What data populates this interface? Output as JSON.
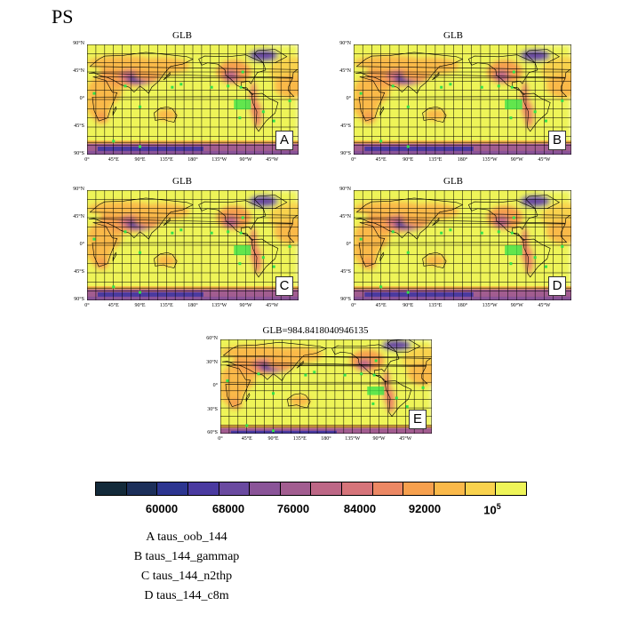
{
  "page_title": "PS",
  "panels": [
    {
      "title": "GLB",
      "letter": "A",
      "ylabels": [
        "90°N",
        "45°N",
        "0°",
        "45°S",
        "90°S"
      ],
      "xlabels": [
        "0°",
        "45°E",
        "90°E",
        "135°E",
        "180°",
        "135°W",
        "90°W",
        "45°W"
      ]
    },
    {
      "title": "GLB",
      "letter": "B",
      "ylabels": [
        "90°N",
        "45°N",
        "0°",
        "45°S",
        "90°S"
      ],
      "xlabels": [
        "0°",
        "45°E",
        "90°E",
        "135°E",
        "180°",
        "135°W",
        "90°W",
        "45°W"
      ]
    },
    {
      "title": "GLB",
      "letter": "C",
      "ylabels": [
        "90°N",
        "45°N",
        "0°",
        "45°S",
        "90°S"
      ],
      "xlabels": [
        "0°",
        "45°E",
        "90°E",
        "135°E",
        "180°",
        "135°W",
        "90°W",
        "45°W"
      ]
    },
    {
      "title": "GLB",
      "letter": "D",
      "ylabels": [
        "90°N",
        "45°N",
        "0°",
        "45°S",
        "90°S"
      ],
      "xlabels": [
        "0°",
        "45°E",
        "90°E",
        "135°E",
        "180°",
        "135°W",
        "90°W",
        "45°W"
      ]
    },
    {
      "title": "GLB=984.8418040946135",
      "letter": "E",
      "ylabels": [
        "60°N",
        "30°N",
        "0°",
        "30°S",
        "60°S"
      ],
      "xlabels": [
        "0°",
        "45°E",
        "90°E",
        "135°E",
        "180°",
        "135°W",
        "90°W",
        "45°W"
      ]
    }
  ],
  "colorbar": {
    "colors": [
      "#132a3a",
      "#1c2f5a",
      "#2c3590",
      "#4a3aa0",
      "#6a4aa0",
      "#8a5498",
      "#a25d90",
      "#bd6786",
      "#d6747a",
      "#ec8864",
      "#f6a04e",
      "#fab94a",
      "#f9d24e",
      "#eef458"
    ],
    "labels": [
      "60000",
      "68000",
      "76000",
      "84000",
      "92000",
      "10^5"
    ]
  },
  "legend": [
    "A  taus_oob_144",
    "B  taus_144_gammap",
    "C  taus_144_n2thp",
    "D  taus_144_c8m"
  ]
}
